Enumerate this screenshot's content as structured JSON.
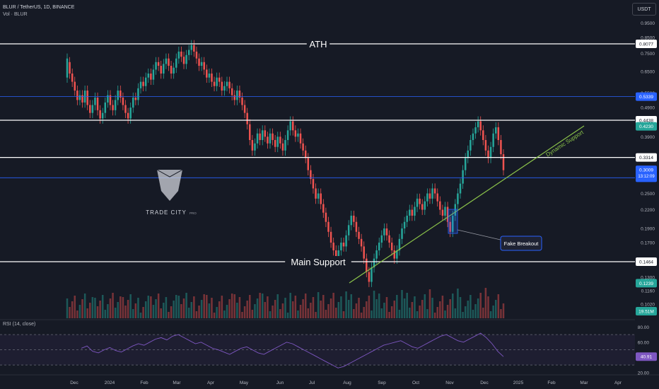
{
  "header": {
    "symbol_line": "BLUR / TetherUS, 1D, BINANCE",
    "volume_label": "Vol · BLUR",
    "currency_button": "USDT",
    "rsi_label": "RSI (14, close)"
  },
  "watermark": {
    "text": "TRADE CITY",
    "sub": "PRO"
  },
  "colors": {
    "bg": "#161a25",
    "up": "#26a69a",
    "down": "#ef5350",
    "line": "#ffffff",
    "trend": "#8bc34a",
    "blue": "#2962ff",
    "rsi": "#7e57c2"
  },
  "chart_data": [
    {
      "type": "candlestick",
      "title": "BLUR / TetherUS, 1D, BINANCE",
      "y_axis": {
        "labels": [
          "0.9500",
          "0.8500",
          "0.7500",
          "0.6500",
          "0.5500",
          "0.4900",
          "0.3900",
          "0.3300",
          "0.2500",
          "0.2200",
          "0.1900",
          "0.1700",
          "0.1300",
          "0.1160",
          "0.1020"
        ]
      },
      "x_axis": {
        "labels": [
          "Dec",
          "2024",
          "Feb",
          "Mar",
          "Apr",
          "May",
          "Jun",
          "Jul",
          "Aug",
          "Sep",
          "Oct",
          "Nov",
          "Dec",
          "2025",
          "Feb",
          "Mar",
          "Apr"
        ]
      },
      "horizontal_levels": [
        {
          "value": 0.8077,
          "label": "ATH",
          "tag": "0.8077",
          "color": "#ffffff"
        },
        {
          "value": 0.5339,
          "label": "",
          "tag": "0.5339",
          "color": "#2962ff"
        },
        {
          "value": 0.4438,
          "label": "",
          "tag": "0.4438",
          "color": "#ffffff"
        },
        {
          "value": 0.3314,
          "label": "",
          "tag": "0.3314",
          "color": "#ffffff"
        },
        {
          "value": 0.2827,
          "label": "",
          "tag": "0.2827",
          "color": "#2962ff"
        },
        {
          "value": 0.1464,
          "label": "Main Support",
          "tag": "0.1464",
          "color": "#ffffff"
        }
      ],
      "price_tags": [
        {
          "value": 0.423,
          "text": "0.4230",
          "color": "#26a69a"
        },
        {
          "value": 0.3009,
          "text": "0.3009",
          "sub": "13:12:09",
          "color": "#2962ff"
        },
        {
          "value": 0.1239,
          "text": "0.1239",
          "color": "#26a69a"
        }
      ],
      "volume_tag": "19.51M",
      "annotations": {
        "trendline": "Dynamic Support",
        "callout": "Fake Breakout"
      },
      "candles": [
        [
          0.62,
          0.72
        ],
        [
          0.7,
          0.64
        ],
        [
          0.64,
          0.6
        ],
        [
          0.6,
          0.56
        ],
        [
          0.56,
          0.52
        ],
        [
          0.52,
          0.54
        ],
        [
          0.54,
          0.51
        ],
        [
          0.51,
          0.56
        ],
        [
          0.56,
          0.5
        ],
        [
          0.5,
          0.47
        ],
        [
          0.47,
          0.5
        ],
        [
          0.5,
          0.53
        ],
        [
          0.53,
          0.48
        ],
        [
          0.48,
          0.45
        ],
        [
          0.45,
          0.47
        ],
        [
          0.47,
          0.51
        ],
        [
          0.51,
          0.54
        ],
        [
          0.54,
          0.5
        ],
        [
          0.5,
          0.48
        ],
        [
          0.48,
          0.52
        ],
        [
          0.52,
          0.56
        ],
        [
          0.56,
          0.53
        ],
        [
          0.53,
          0.5
        ],
        [
          0.5,
          0.47
        ],
        [
          0.47,
          0.45
        ],
        [
          0.45,
          0.49
        ],
        [
          0.49,
          0.53
        ],
        [
          0.53,
          0.52
        ],
        [
          0.52,
          0.57
        ],
        [
          0.57,
          0.6
        ],
        [
          0.6,
          0.58
        ],
        [
          0.58,
          0.62
        ],
        [
          0.62,
          0.64
        ],
        [
          0.64,
          0.61
        ],
        [
          0.61,
          0.66
        ],
        [
          0.66,
          0.7
        ],
        [
          0.7,
          0.68
        ],
        [
          0.68,
          0.64
        ],
        [
          0.64,
          0.69
        ],
        [
          0.69,
          0.72
        ],
        [
          0.72,
          0.68
        ],
        [
          0.68,
          0.64
        ],
        [
          0.64,
          0.67
        ],
        [
          0.67,
          0.72
        ],
        [
          0.72,
          0.76
        ],
        [
          0.76,
          0.73
        ],
        [
          0.73,
          0.69
        ],
        [
          0.69,
          0.74
        ],
        [
          0.74,
          0.77
        ],
        [
          0.77,
          0.8
        ],
        [
          0.8,
          0.76
        ],
        [
          0.76,
          0.72
        ],
        [
          0.72,
          0.68
        ],
        [
          0.68,
          0.7
        ],
        [
          0.7,
          0.66
        ],
        [
          0.66,
          0.62
        ],
        [
          0.62,
          0.64
        ],
        [
          0.64,
          0.6
        ],
        [
          0.6,
          0.58
        ],
        [
          0.58,
          0.62
        ],
        [
          0.62,
          0.6
        ],
        [
          0.6,
          0.56
        ],
        [
          0.56,
          0.58
        ],
        [
          0.58,
          0.6
        ],
        [
          0.6,
          0.57
        ],
        [
          0.57,
          0.54
        ],
        [
          0.54,
          0.52
        ],
        [
          0.52,
          0.56
        ],
        [
          0.56,
          0.53
        ],
        [
          0.53,
          0.5
        ],
        [
          0.5,
          0.47
        ],
        [
          0.47,
          0.43
        ],
        [
          0.43,
          0.38
        ],
        [
          0.38,
          0.35
        ],
        [
          0.35,
          0.37
        ],
        [
          0.37,
          0.4
        ],
        [
          0.4,
          0.38
        ],
        [
          0.38,
          0.41
        ],
        [
          0.41,
          0.39
        ],
        [
          0.39,
          0.37
        ],
        [
          0.37,
          0.4
        ],
        [
          0.4,
          0.38
        ],
        [
          0.38,
          0.36
        ],
        [
          0.36,
          0.39
        ],
        [
          0.39,
          0.37
        ],
        [
          0.37,
          0.35
        ],
        [
          0.35,
          0.38
        ],
        [
          0.38,
          0.41
        ],
        [
          0.41,
          0.44
        ],
        [
          0.44,
          0.41
        ],
        [
          0.41,
          0.39
        ],
        [
          0.39,
          0.4
        ],
        [
          0.4,
          0.37
        ],
        [
          0.37,
          0.35
        ],
        [
          0.35,
          0.33
        ],
        [
          0.33,
          0.3
        ],
        [
          0.3,
          0.28
        ],
        [
          0.28,
          0.26
        ],
        [
          0.26,
          0.24
        ],
        [
          0.24,
          0.25
        ],
        [
          0.25,
          0.23
        ],
        [
          0.23,
          0.215
        ],
        [
          0.215,
          0.2
        ],
        [
          0.2,
          0.185
        ],
        [
          0.185,
          0.17
        ],
        [
          0.17,
          0.16
        ],
        [
          0.16,
          0.15
        ],
        [
          0.15,
          0.16
        ],
        [
          0.16,
          0.17
        ],
        [
          0.17,
          0.165
        ],
        [
          0.165,
          0.18
        ],
        [
          0.18,
          0.195
        ],
        [
          0.195,
          0.21
        ],
        [
          0.21,
          0.2
        ],
        [
          0.2,
          0.185
        ],
        [
          0.185,
          0.175
        ],
        [
          0.175,
          0.165
        ],
        [
          0.165,
          0.15
        ],
        [
          0.15,
          0.135
        ],
        [
          0.135,
          0.125
        ],
        [
          0.125,
          0.14
        ],
        [
          0.14,
          0.15
        ],
        [
          0.15,
          0.16
        ],
        [
          0.16,
          0.17
        ],
        [
          0.17,
          0.18
        ],
        [
          0.18,
          0.19
        ],
        [
          0.19,
          0.18
        ],
        [
          0.18,
          0.17
        ],
        [
          0.17,
          0.16
        ],
        [
          0.16,
          0.15
        ],
        [
          0.15,
          0.16
        ],
        [
          0.16,
          0.175
        ],
        [
          0.175,
          0.19
        ],
        [
          0.19,
          0.2
        ],
        [
          0.2,
          0.21
        ],
        [
          0.21,
          0.22
        ],
        [
          0.22,
          0.21
        ],
        [
          0.21,
          0.225
        ],
        [
          0.225,
          0.24
        ],
        [
          0.24,
          0.23
        ],
        [
          0.23,
          0.22
        ],
        [
          0.22,
          0.235
        ],
        [
          0.235,
          0.25
        ],
        [
          0.25,
          0.24
        ],
        [
          0.24,
          0.26
        ],
        [
          0.26,
          0.25
        ],
        [
          0.25,
          0.235
        ],
        [
          0.235,
          0.22
        ],
        [
          0.22,
          0.21
        ],
        [
          0.21,
          0.225
        ],
        [
          0.225,
          0.2
        ],
        [
          0.2,
          0.185
        ],
        [
          0.185,
          0.21
        ],
        [
          0.21,
          0.23
        ],
        [
          0.23,
          0.25
        ],
        [
          0.25,
          0.27
        ],
        [
          0.27,
          0.3
        ],
        [
          0.3,
          0.33
        ],
        [
          0.33,
          0.35
        ],
        [
          0.35,
          0.38
        ],
        [
          0.38,
          0.4
        ],
        [
          0.4,
          0.42
        ],
        [
          0.42,
          0.44
        ],
        [
          0.44,
          0.41
        ],
        [
          0.41,
          0.38
        ],
        [
          0.38,
          0.35
        ],
        [
          0.35,
          0.33
        ],
        [
          0.33,
          0.36
        ],
        [
          0.36,
          0.4
        ],
        [
          0.4,
          0.42
        ],
        [
          0.42,
          0.38
        ],
        [
          0.38,
          0.34
        ],
        [
          0.34,
          0.3
        ]
      ],
      "rsi": {
        "levels": [
          70,
          50,
          30
        ],
        "y_labels": [
          "80.00",
          "60.00",
          "40.00",
          "20.00"
        ],
        "current": "40.91",
        "values": [
          52,
          55,
          48,
          46,
          50,
          53,
          49,
          47,
          51,
          55,
          58,
          56,
          60,
          64,
          66,
          63,
          68,
          70,
          66,
          62,
          58,
          60,
          56,
          52,
          50,
          47,
          44,
          48,
          52,
          54,
          50,
          46,
          44,
          48,
          52,
          56,
          60,
          58,
          54,
          50,
          46,
          42,
          38,
          34,
          30,
          26,
          28,
          32,
          36,
          40,
          44,
          48,
          52,
          56,
          58,
          60,
          62,
          58,
          54,
          52,
          56,
          60,
          64,
          68,
          70,
          66,
          62,
          60,
          64,
          68,
          72,
          66,
          58,
          48,
          41
        ]
      }
    }
  ]
}
